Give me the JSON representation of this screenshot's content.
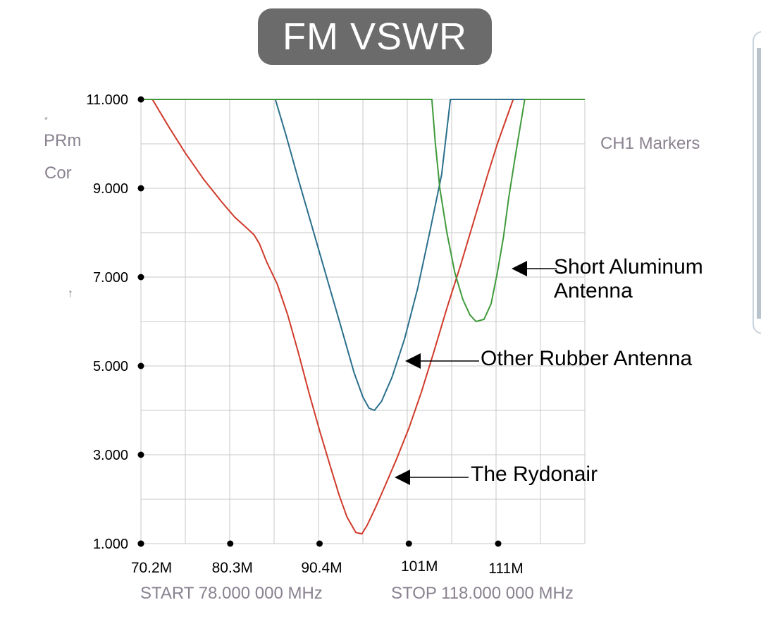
{
  "title": "FM VSWR",
  "background_text": {
    "star": "*",
    "prm": "PRm",
    "cor": "Cor",
    "arrow": "↑",
    "ch1_markers": "CH1 Markers",
    "start": "START 78.000 000 MHz",
    "stop": "STOP 118.000 000 MHz"
  },
  "annotations": {
    "short_aluminum": [
      "Short Aluminum",
      "Antenna"
    ],
    "other_rubber": "Other Rubber Antenna",
    "rydonair": "The Rydonair"
  },
  "colors": {
    "rydonair": "#d03a2a",
    "other_rubber": "#2a6f8c",
    "short_aluminum": "#3f9a3a",
    "title_bg": "#6b6b6b",
    "grid": "#c8c8c8"
  },
  "chart_data": {
    "type": "line",
    "xlim": [
      70.2,
      120.4
    ],
    "ylim": [
      1.0,
      11.0
    ],
    "y_ticks": [
      "11.000",
      "9.000",
      "7.000",
      "5.000",
      "3.000",
      "1.000"
    ],
    "y_tick_values": [
      11,
      9,
      7,
      5,
      3,
      1
    ],
    "x_ticks": [
      "70.2M",
      "80.3M",
      "90.4M",
      "101M",
      "111M"
    ],
    "x_tick_values": [
      70.2,
      80.3,
      90.4,
      100.5,
      110.6
    ],
    "series": [
      {
        "name": "The Rydonair",
        "color_key": "rydonair",
        "x": [
          70.2,
          71.5,
          73.3,
          75.2,
          77.3,
          79.3,
          80.8,
          82.2,
          83.0,
          83.6,
          84.4,
          85.6,
          86.8,
          88.0,
          89.2,
          90.4,
          91.6,
          92.6,
          93.5,
          94.5,
          95.2,
          95.8,
          96.7,
          97.8,
          99.1,
          100.5,
          101.9,
          103.3,
          104.8,
          106.4,
          107.9,
          109.4,
          110.5,
          112.3,
          114.0,
          120.4
        ],
        "y": [
          11.0,
          11.0,
          10.4,
          9.8,
          9.2,
          8.7,
          8.35,
          8.1,
          7.95,
          7.75,
          7.35,
          6.85,
          6.15,
          5.3,
          4.4,
          3.55,
          2.75,
          2.1,
          1.6,
          1.25,
          1.22,
          1.42,
          1.8,
          2.3,
          2.9,
          3.6,
          4.4,
          5.3,
          6.3,
          7.3,
          8.3,
          9.3,
          10.0,
          11.0,
          11.0,
          11.0
        ]
      },
      {
        "name": "Other Rubber Antenna",
        "color_key": "other_rubber",
        "x": [
          70.2,
          85.4,
          86.6,
          88.0,
          89.6,
          91.2,
          92.8,
          94.3,
          95.3,
          96.0,
          96.6,
          97.4,
          98.6,
          100.0,
          101.5,
          102.9,
          104.2,
          105.2,
          120.4
        ],
        "y": [
          11.0,
          11.0,
          10.2,
          9.2,
          8.1,
          7.0,
          5.9,
          4.85,
          4.3,
          4.05,
          4.0,
          4.2,
          4.75,
          5.6,
          6.75,
          8.05,
          9.3,
          11.0,
          11.0
        ]
      },
      {
        "name": "Short Aluminum Antenna",
        "color_key": "short_aluminum",
        "x": [
          70.2,
          103.1,
          103.5,
          104.0,
          104.8,
          105.7,
          106.6,
          107.4,
          108.1,
          109.0,
          109.8,
          110.5,
          111.2,
          111.8,
          112.6,
          113.6,
          120.4
        ],
        "y": [
          11.0,
          11.0,
          10.0,
          9.0,
          8.0,
          7.1,
          6.5,
          6.15,
          6.0,
          6.05,
          6.4,
          7.1,
          7.9,
          8.8,
          9.8,
          11.0,
          11.0
        ]
      }
    ]
  }
}
